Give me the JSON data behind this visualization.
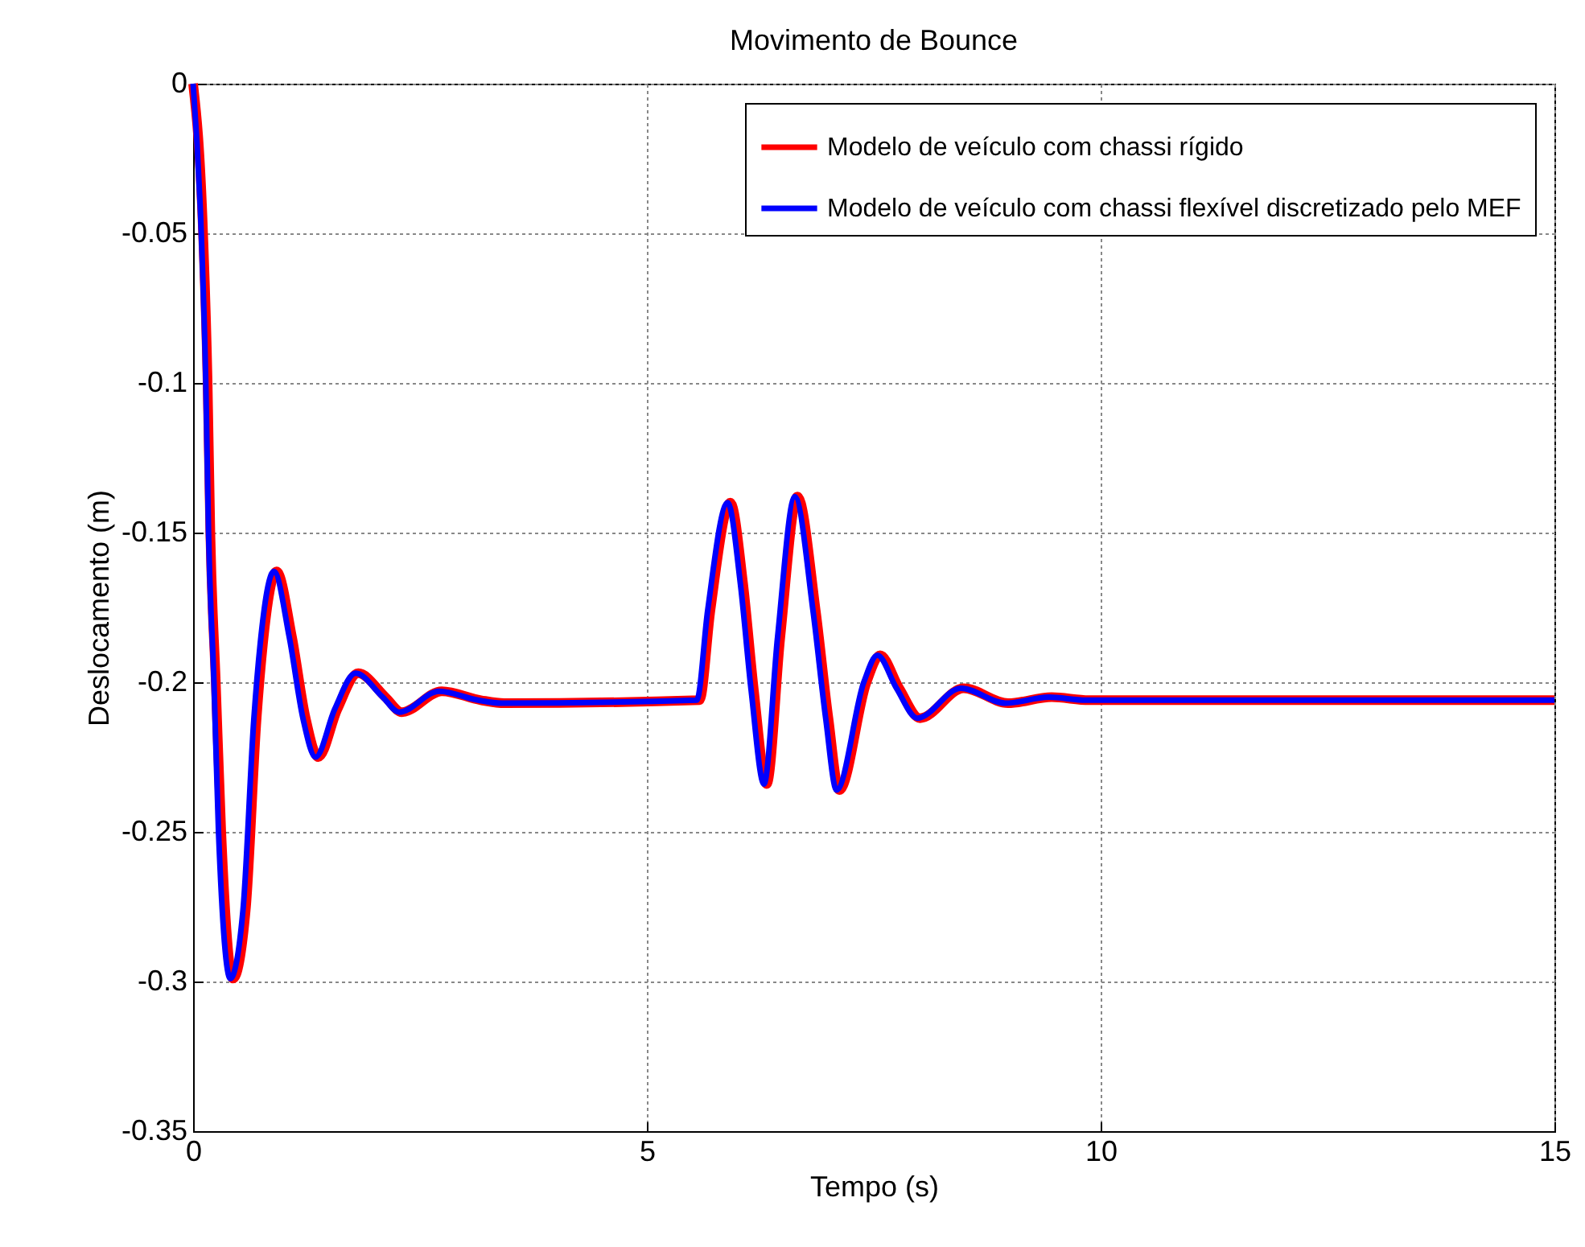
{
  "chart_data": {
    "type": "line",
    "title": "Movimento de Bounce",
    "xlabel": "Tempo (s)",
    "ylabel": "Deslocamento (m)",
    "xlim": [
      0,
      15
    ],
    "xticks": [
      0,
      5,
      10,
      15
    ],
    "ylim": [
      -0.35,
      0
    ],
    "yticks": [
      -0.35,
      -0.3,
      -0.25,
      -0.2,
      -0.15,
      -0.1,
      -0.05,
      0
    ],
    "grid": true,
    "legend": "top right",
    "line_style": "solid",
    "marker": "none",
    "x": [
      0,
      0.09,
      0.14,
      0.17,
      0.23,
      0.28,
      0.41,
      0.55,
      0.67,
      0.74,
      0.89,
      1.06,
      1.21,
      1.35,
      1.56,
      1.79,
      2.09,
      2.27,
      2.71,
      3.14,
      3.4,
      5.55,
      5.67,
      5.89,
      6.03,
      6.15,
      6.29,
      6.44,
      6.63,
      6.83,
      6.97,
      7.09,
      7.39,
      7.54,
      7.75,
      7.98,
      8.46,
      8.95,
      9.43,
      9.84,
      15
    ],
    "series": [
      {
        "name": "Modelo de veículo com chassi rígido",
        "color": "#ff0000",
        "x": [
          0,
          0.11,
          0.16,
          0.19,
          0.25,
          0.31,
          0.44,
          0.58,
          0.7,
          0.77,
          0.92,
          1.09,
          1.24,
          1.38,
          1.59,
          1.82,
          2.12,
          2.3,
          2.74,
          3.17,
          3.43,
          5.58,
          5.7,
          5.92,
          6.06,
          6.18,
          6.32,
          6.47,
          6.66,
          6.86,
          7.0,
          7.12,
          7.42,
          7.57,
          7.78,
          8.01,
          8.49,
          8.98,
          9.46,
          9.87,
          15
        ],
        "values": [
          0,
          -0.05,
          -0.1,
          -0.15,
          -0.2,
          -0.25,
          -0.299,
          -0.276,
          -0.212,
          -0.187,
          -0.163,
          -0.185,
          -0.212,
          -0.225,
          -0.209,
          -0.197,
          -0.205,
          -0.21,
          -0.203,
          -0.206,
          -0.207,
          -0.206,
          -0.176,
          -0.14,
          -0.167,
          -0.203,
          -0.234,
          -0.185,
          -0.138,
          -0.176,
          -0.212,
          -0.236,
          -0.2,
          -0.191,
          -0.202,
          -0.212,
          -0.202,
          -0.207,
          -0.205,
          -0.206,
          -0.206
        ]
      },
      {
        "name": "Modelo de veículo com chassi flexível discretizado pelo MEF",
        "color": "#0000ff",
        "values": [
          0,
          -0.05,
          -0.1,
          -0.15,
          -0.2,
          -0.25,
          -0.299,
          -0.276,
          -0.212,
          -0.187,
          -0.163,
          -0.185,
          -0.212,
          -0.225,
          -0.209,
          -0.197,
          -0.205,
          -0.21,
          -0.203,
          -0.206,
          -0.207,
          -0.206,
          -0.176,
          -0.14,
          -0.167,
          -0.203,
          -0.234,
          -0.185,
          -0.138,
          -0.176,
          -0.212,
          -0.236,
          -0.2,
          -0.191,
          -0.202,
          -0.212,
          -0.202,
          -0.207,
          -0.205,
          -0.206,
          -0.206
        ]
      }
    ]
  }
}
